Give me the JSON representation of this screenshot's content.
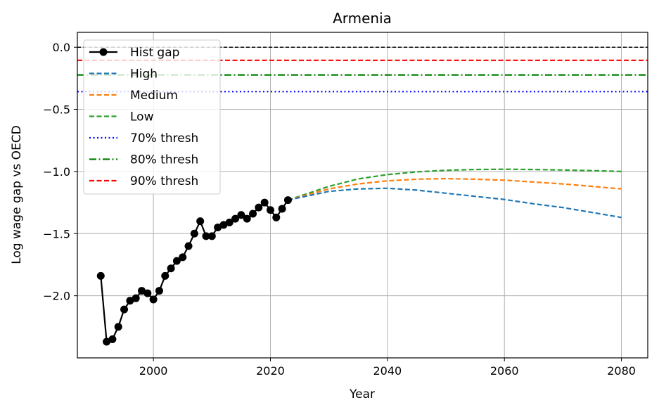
{
  "chart_data": {
    "type": "line",
    "title": "Armenia",
    "xlabel": "Year",
    "ylabel": "Log wage gap vs OECD",
    "xlim": [
      1987,
      2084.5
    ],
    "ylim": [
      -2.5,
      0.12
    ],
    "xticks": [
      2000,
      2020,
      2040,
      2060,
      2080
    ],
    "yticks": [
      0.0,
      -0.5,
      -1.0,
      -1.5,
      -2.0
    ],
    "xtick_labels": [
      "2000",
      "2020",
      "2040",
      "2060",
      "2080"
    ],
    "ytick_labels": [
      "0.0",
      "−0.5",
      "−1.0",
      "−1.5",
      "−2.0"
    ],
    "grid": true,
    "legend_position": "upper-left",
    "reference_lines": [
      {
        "y": 0.0,
        "color": "#000000",
        "style": "dashed"
      }
    ],
    "series": [
      {
        "name": "Hist gap",
        "color": "#000000",
        "style": "solid",
        "marker": "circle",
        "x": [
          1991,
          1992,
          1993,
          1994,
          1995,
          1996,
          1997,
          1998,
          1999,
          2000,
          2001,
          2002,
          2003,
          2004,
          2005,
          2006,
          2007,
          2008,
          2009,
          2010,
          2011,
          2012,
          2013,
          2014,
          2015,
          2016,
          2017,
          2018,
          2019,
          2020,
          2021,
          2022,
          2023
        ],
        "y": [
          -1.84,
          -2.37,
          -2.35,
          -2.25,
          -2.11,
          -2.04,
          -2.02,
          -1.96,
          -1.98,
          -2.03,
          -1.96,
          -1.84,
          -1.78,
          -1.72,
          -1.69,
          -1.6,
          -1.5,
          -1.4,
          -1.52,
          -1.52,
          -1.45,
          -1.43,
          -1.41,
          -1.38,
          -1.35,
          -1.38,
          -1.34,
          -1.29,
          -1.25,
          -1.31,
          -1.37,
          -1.3,
          -1.23
        ]
      },
      {
        "name": "High",
        "color": "#1f77b4",
        "style": "dashed",
        "x": [
          2023,
          2030,
          2035,
          2040,
          2045,
          2050,
          2055,
          2060,
          2065,
          2070,
          2075,
          2080
        ],
        "y": [
          -1.23,
          -1.16,
          -1.14,
          -1.135,
          -1.15,
          -1.175,
          -1.2,
          -1.225,
          -1.26,
          -1.29,
          -1.33,
          -1.37
        ]
      },
      {
        "name": "Medium",
        "color": "#ff7f0e",
        "style": "dashed",
        "x": [
          2023,
          2030,
          2035,
          2040,
          2045,
          2050,
          2055,
          2060,
          2065,
          2070,
          2075,
          2080
        ],
        "y": [
          -1.23,
          -1.14,
          -1.1,
          -1.075,
          -1.062,
          -1.057,
          -1.062,
          -1.07,
          -1.085,
          -1.1,
          -1.12,
          -1.14
        ]
      },
      {
        "name": "Low",
        "color": "#2ca02c",
        "style": "dashed",
        "x": [
          2023,
          2030,
          2035,
          2040,
          2045,
          2050,
          2055,
          2060,
          2065,
          2070,
          2075,
          2080
        ],
        "y": [
          -1.23,
          -1.12,
          -1.06,
          -1.025,
          -1.003,
          -0.99,
          -0.984,
          -0.982,
          -0.984,
          -0.988,
          -0.993,
          -1.0
        ]
      },
      {
        "name": "70% thresh",
        "color": "#0000ff",
        "style": "dotted",
        "x": [
          1987,
          2084.5
        ],
        "y": [
          -0.357,
          -0.357
        ]
      },
      {
        "name": "80% thresh",
        "color": "#008000",
        "style": "dashdot",
        "x": [
          1987,
          2084.5
        ],
        "y": [
          -0.223,
          -0.223
        ]
      },
      {
        "name": "90% thresh",
        "color": "#ff0000",
        "style": "dashed",
        "x": [
          1987,
          2084.5
        ],
        "y": [
          -0.105,
          -0.105
        ]
      }
    ]
  }
}
